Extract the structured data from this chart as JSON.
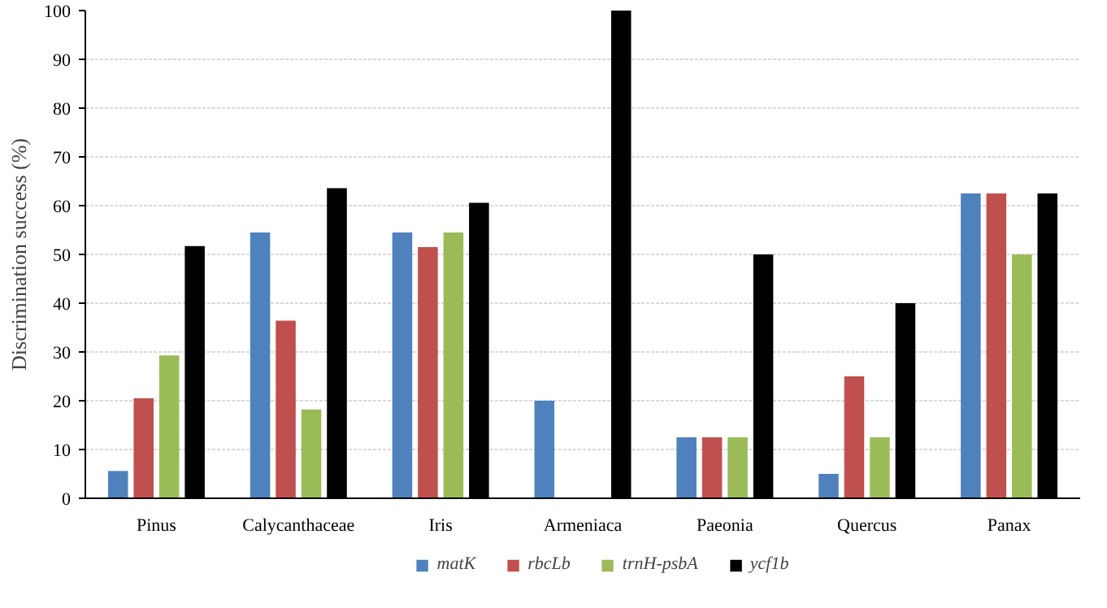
{
  "chart_data": {
    "type": "bar",
    "ylabel": "Discrimination success (%)",
    "categories": [
      "Pinus",
      "Calycanthaceae",
      "Iris",
      "Armeniaca",
      "Paeonia",
      "Quercus",
      "Panax"
    ],
    "series": [
      {
        "name": "matK",
        "color": "#4f81bd",
        "values": [
          5.6,
          54.5,
          54.5,
          20,
          12.5,
          5,
          62.5
        ]
      },
      {
        "name": "rbcLb",
        "color": "#c0504d",
        "values": [
          20.5,
          36.4,
          51.5,
          0,
          12.5,
          25,
          62.5
        ]
      },
      {
        "name": "trnH-psbA",
        "color": "#9bbb59",
        "values": [
          29.3,
          18.2,
          54.5,
          0,
          12.5,
          12.5,
          50
        ]
      },
      {
        "name": "ycf1b",
        "color": "#000000",
        "values": [
          51.7,
          63.6,
          60.6,
          100,
          50,
          40,
          62.5
        ]
      }
    ],
    "ylim": [
      0,
      100
    ],
    "yticks": [
      0,
      10,
      20,
      30,
      40,
      50,
      60,
      70,
      80,
      90,
      100
    ],
    "grid": "y",
    "legend": "bottom"
  }
}
